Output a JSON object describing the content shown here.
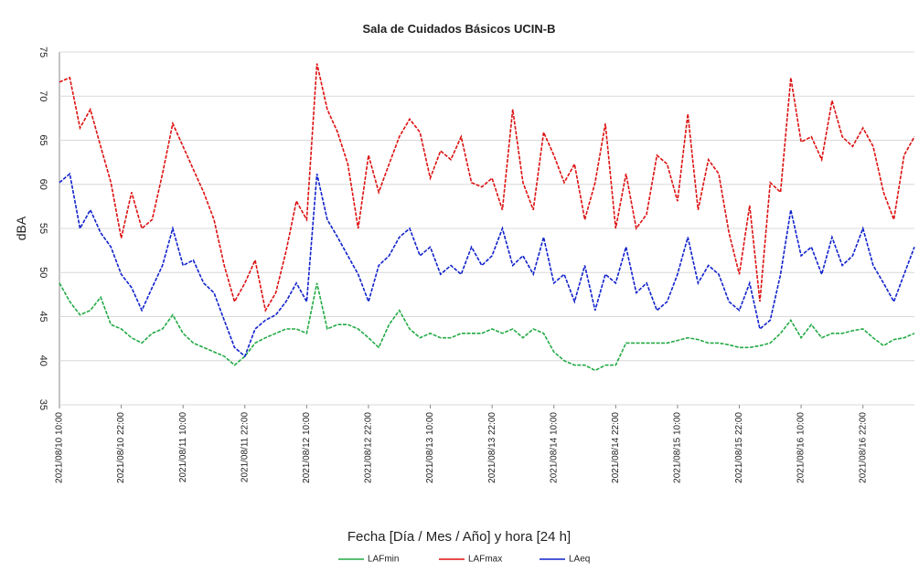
{
  "chart_data": {
    "type": "line",
    "title": "Sala de Cuidados Básicos UCIN-B",
    "y_label": "dBA",
    "x_label": "Fecha [Día / Mes / Año] y hora [24 h]",
    "categories": [
      "2021/08/10 10:00",
      null,
      null,
      null,
      null,
      null,
      "2021/08/10 22:00",
      null,
      null,
      null,
      null,
      null,
      "2021/08/11 10:00",
      null,
      null,
      null,
      null,
      null,
      "2021/08/11 22:00",
      null,
      null,
      null,
      null,
      null,
      "2021/08/12 10:00",
      null,
      null,
      null,
      null,
      null,
      "2021/08/12 22:00",
      null,
      null,
      null,
      null,
      null,
      "2021/08/13 10:00",
      null,
      null,
      null,
      null,
      null,
      "2021/08/13 22:00",
      null,
      null,
      null,
      null,
      null,
      "2021/08/14 10:00",
      null,
      null,
      null,
      null,
      null,
      "2021/08/14 22:00",
      null,
      null,
      null,
      null,
      null,
      "2021/08/15 10:00",
      null,
      null,
      null,
      null,
      null,
      "2021/08/15 22:00",
      null,
      null,
      null,
      null,
      null,
      "2021/08/16 10:00",
      null,
      null,
      null,
      null,
      null,
      "2021/08/16 22:00",
      null,
      null,
      null,
      null,
      null
    ],
    "series": [
      {
        "name": "LAFmin",
        "color": "#22aa44",
        "values": [
          48.8,
          46.7,
          45.2,
          45.7,
          47.2,
          44.1,
          43.6,
          42.6,
          42.0,
          43.1,
          43.6,
          45.2,
          43.1,
          42.0,
          41.5,
          41.0,
          40.5,
          39.5,
          40.5,
          42.0,
          42.6,
          43.1,
          43.6,
          43.6,
          43.1,
          48.8,
          43.6,
          44.1,
          44.1,
          43.6,
          42.6,
          41.5,
          44.1,
          45.7,
          43.6,
          42.6,
          43.1,
          42.6,
          42.6,
          43.1,
          43.1,
          43.1,
          43.6,
          43.1,
          43.6,
          42.6,
          43.6,
          43.1,
          41.0,
          40.0,
          39.5,
          39.5,
          38.9,
          39.5,
          39.5,
          42.0,
          42.0,
          42.0,
          42.0,
          42.0,
          42.3,
          42.6,
          42.4,
          42.0,
          42.0,
          41.8,
          41.5,
          41.5,
          41.7,
          42.0,
          43.1,
          44.6,
          42.6,
          44.1,
          42.6,
          43.1,
          43.1,
          43.4,
          43.6,
          42.6,
          41.7,
          42.4,
          42.6,
          43.1
        ]
      },
      {
        "name": "LAFmax",
        "color": "#dd1111",
        "values": [
          71.6,
          72.1,
          66.4,
          68.5,
          64.3,
          60.2,
          53.9,
          59.1,
          55.0,
          56.0,
          61.2,
          66.9,
          64.3,
          61.7,
          59.1,
          56.0,
          50.8,
          46.7,
          48.8,
          51.4,
          45.7,
          47.7,
          52.4,
          58.1,
          56.0,
          73.7,
          68.5,
          65.9,
          62.3,
          55.0,
          63.3,
          59.1,
          62.3,
          65.4,
          67.4,
          65.9,
          60.7,
          63.8,
          62.8,
          65.4,
          60.2,
          59.7,
          60.7,
          57.1,
          68.5,
          60.2,
          57.1,
          65.9,
          63.3,
          60.2,
          62.3,
          56.0,
          60.2,
          66.9,
          55.0,
          61.2,
          55.0,
          56.6,
          63.3,
          62.3,
          58.1,
          68.0,
          57.1,
          62.8,
          61.2,
          54.5,
          49.8,
          57.6,
          46.7,
          60.2,
          59.1,
          72.1,
          64.8,
          65.4,
          62.8,
          69.5,
          65.4,
          64.3,
          66.4,
          64.3,
          59.1,
          56.0,
          63.3,
          65.4
        ]
      },
      {
        "name": "LAeq",
        "color": "#1122cc",
        "values": [
          60.2,
          61.2,
          55.0,
          57.1,
          54.5,
          52.9,
          49.8,
          48.3,
          45.7,
          48.3,
          50.8,
          55.0,
          50.8,
          51.4,
          48.8,
          47.7,
          44.6,
          41.5,
          40.5,
          43.6,
          44.6,
          45.2,
          46.7,
          48.8,
          46.7,
          61.2,
          56.0,
          54.0,
          51.9,
          49.8,
          46.7,
          50.8,
          51.9,
          54.0,
          55.0,
          51.9,
          52.9,
          49.8,
          50.8,
          49.8,
          52.9,
          50.8,
          51.9,
          55.0,
          50.8,
          51.9,
          49.8,
          54.0,
          48.8,
          49.8,
          46.7,
          50.8,
          45.7,
          49.8,
          48.8,
          52.9,
          47.7,
          48.8,
          45.7,
          46.7,
          49.8,
          54.0,
          48.8,
          50.8,
          49.8,
          46.7,
          45.7,
          48.8,
          43.6,
          44.6,
          49.8,
          57.1,
          51.9,
          52.9,
          49.8,
          54.0,
          50.8,
          51.9,
          55.0,
          50.8,
          48.8,
          46.7,
          49.8,
          52.9
        ]
      }
    ],
    "ylim": [
      35,
      75
    ],
    "yticks": [
      35,
      40,
      45,
      50,
      55,
      60,
      65,
      70,
      75
    ],
    "grid": true
  }
}
